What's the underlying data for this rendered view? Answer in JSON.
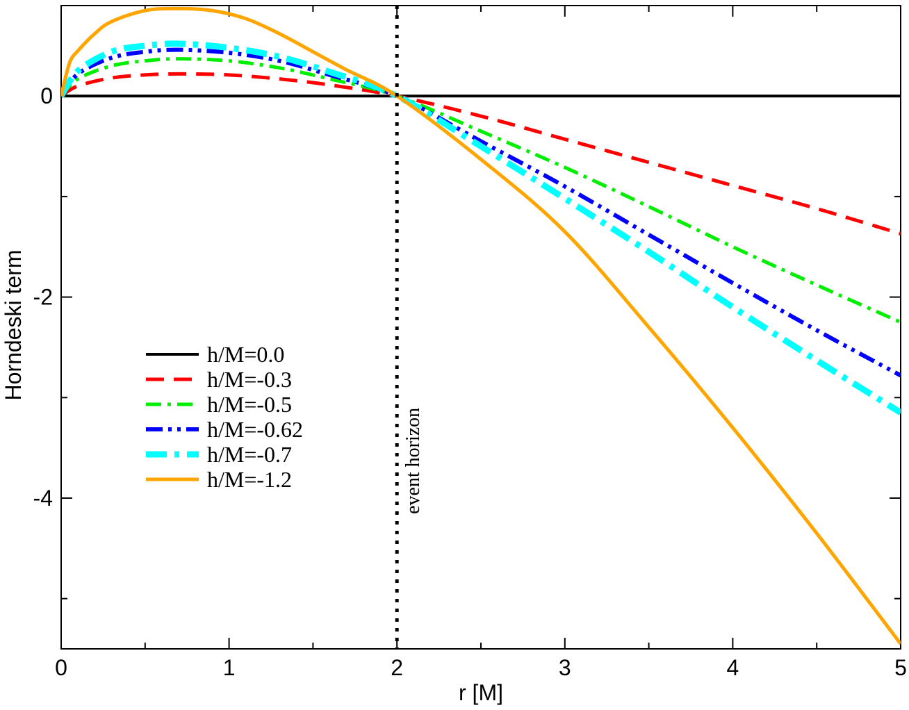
{
  "chart_data": {
    "type": "line",
    "title": "",
    "xlabel": "r [M]",
    "ylabel": "Horndeski term",
    "xlim": [
      0,
      5
    ],
    "ylim": [
      -5.5,
      0.9
    ],
    "x_ticks": [
      0,
      1,
      2,
      3,
      4,
      5
    ],
    "x_tick_labels": [
      "0",
      "1",
      "2",
      "3",
      "4",
      "5"
    ],
    "y_ticks": [
      0,
      -2,
      -4
    ],
    "y_tick_labels": [
      "0",
      "-2",
      "-4"
    ],
    "grid": false,
    "legend_position": "lower-left",
    "event_horizon": {
      "x": 2,
      "label": "event horizon"
    },
    "series": [
      {
        "name": "h/M=0.0",
        "color": "#000000",
        "style": "solid",
        "x": [
          0,
          1,
          2,
          3,
          4,
          5
        ],
        "y": [
          0,
          0,
          0,
          0,
          0,
          0
        ]
      },
      {
        "name": "h/M=-0.3",
        "color": "#ff0000",
        "style": "dash",
        "x": [
          0,
          0.1,
          0.3,
          0.5,
          0.7,
          1.0,
          1.3,
          1.6,
          2.0,
          2.5,
          3.0,
          3.5,
          4.0,
          4.5,
          5.0
        ],
        "y": [
          0,
          0.1,
          0.18,
          0.21,
          0.22,
          0.21,
          0.17,
          0.11,
          0.0,
          -0.2,
          -0.43,
          -0.66,
          -0.89,
          -1.12,
          -1.37
        ]
      },
      {
        "name": "h/M=-0.5",
        "color": "#00ee00",
        "style": "dashdot",
        "x": [
          0,
          0.1,
          0.3,
          0.5,
          0.7,
          1.0,
          1.3,
          1.6,
          2.0,
          2.5,
          3.0,
          3.5,
          4.0,
          4.5,
          5.0
        ],
        "y": [
          0,
          0.17,
          0.3,
          0.35,
          0.37,
          0.35,
          0.28,
          0.17,
          0.0,
          -0.35,
          -0.71,
          -1.1,
          -1.5,
          -1.88,
          -2.25
        ]
      },
      {
        "name": "h/M=-0.62",
        "color": "#0000ff",
        "style": "dashdotdot",
        "x": [
          0,
          0.1,
          0.3,
          0.5,
          0.7,
          1.0,
          1.3,
          1.6,
          2.0,
          2.5,
          3.0,
          3.5,
          4.0,
          4.5,
          5.0
        ],
        "y": [
          0,
          0.22,
          0.38,
          0.44,
          0.46,
          0.43,
          0.35,
          0.21,
          0.0,
          -0.45,
          -0.9,
          -1.38,
          -1.86,
          -2.33,
          -2.78
        ]
      },
      {
        "name": "h/M=-0.7",
        "color": "#00ffff",
        "style": "dashdot-thick",
        "x": [
          0,
          0.1,
          0.3,
          0.5,
          0.7,
          1.0,
          1.3,
          1.6,
          2.0,
          2.5,
          3.0,
          3.5,
          4.0,
          4.5,
          5.0
        ],
        "y": [
          0,
          0.25,
          0.44,
          0.5,
          0.52,
          0.48,
          0.39,
          0.24,
          0.0,
          -0.5,
          -1.02,
          -1.55,
          -2.1,
          -2.63,
          -3.15
        ]
      },
      {
        "name": "h/M=-1.2",
        "color": "#ffa500",
        "style": "solid",
        "x": [
          0,
          0.05,
          0.1,
          0.2,
          0.3,
          0.5,
          0.7,
          0.9,
          1.1,
          1.3,
          1.5,
          1.7,
          2.0,
          2.5,
          3.0,
          3.5,
          4.0,
          4.5,
          5.0
        ],
        "y": [
          0,
          0.33,
          0.45,
          0.62,
          0.74,
          0.85,
          0.87,
          0.85,
          0.77,
          0.62,
          0.44,
          0.26,
          0.0,
          -0.63,
          -1.35,
          -2.3,
          -3.3,
          -4.35,
          -5.45
        ]
      }
    ]
  }
}
